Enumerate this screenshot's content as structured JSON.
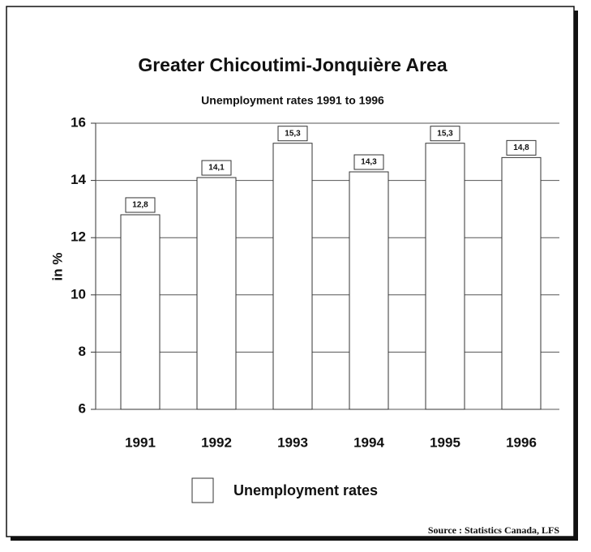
{
  "chart_data": {
    "type": "bar",
    "title": "Greater Chicoutimi-Jonquière Area",
    "subtitle": "Unemployment rates 1991 to 1996",
    "y_label": "in %",
    "categories": [
      "1991",
      "1992",
      "1993",
      "1994",
      "1995",
      "1996"
    ],
    "series": [
      {
        "name": "Unemployment rates",
        "color": "#ffffff",
        "values": [
          12.8,
          14.1,
          15.3,
          14.3,
          15.3,
          14.8
        ],
        "value_labels": [
          "12,8",
          "14,1",
          "15,3",
          "14,3",
          "15,3",
          "14,8"
        ]
      }
    ],
    "ylim": [
      6,
      16
    ],
    "yticks": [
      6,
      8,
      10,
      12,
      14,
      16
    ],
    "grid": true,
    "source": "Source : Statistics Canada, LFS"
  }
}
